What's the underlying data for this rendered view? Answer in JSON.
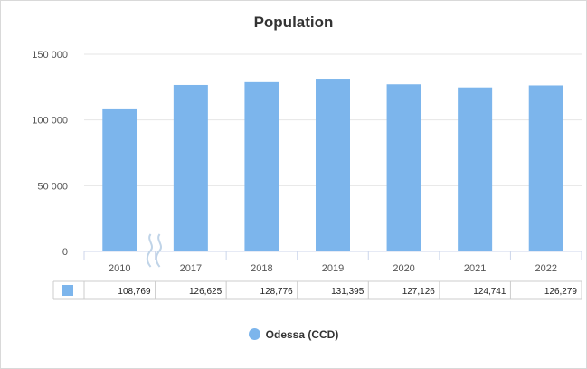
{
  "chart_data": {
    "type": "bar",
    "title": "Population",
    "categories": [
      "2010",
      "2017",
      "2018",
      "2019",
      "2020",
      "2021",
      "2022"
    ],
    "series": [
      {
        "name": "Odessa (CCD)",
        "values": [
          108769,
          126625,
          128776,
          131395,
          127126,
          124741,
          126279
        ],
        "value_labels": [
          "108,769",
          "126,625",
          "128,776",
          "131,395",
          "127,126",
          "124,741",
          "126,279"
        ],
        "color": "#7cb5ec"
      }
    ],
    "y_ticks": [
      0,
      50000,
      100000,
      150000
    ],
    "y_tick_labels": [
      "0",
      "50 000",
      "100 000",
      "150 000"
    ],
    "ylim": [
      0,
      150000
    ],
    "axis_break_after_category": "2010",
    "data_table": true,
    "grid": true,
    "legend_position": "bottom-center",
    "colors": {
      "grid": "#e6e6e6",
      "axis": "#ccd6eb",
      "table_border": "#cccccc",
      "break": "#c0d4e8"
    }
  }
}
